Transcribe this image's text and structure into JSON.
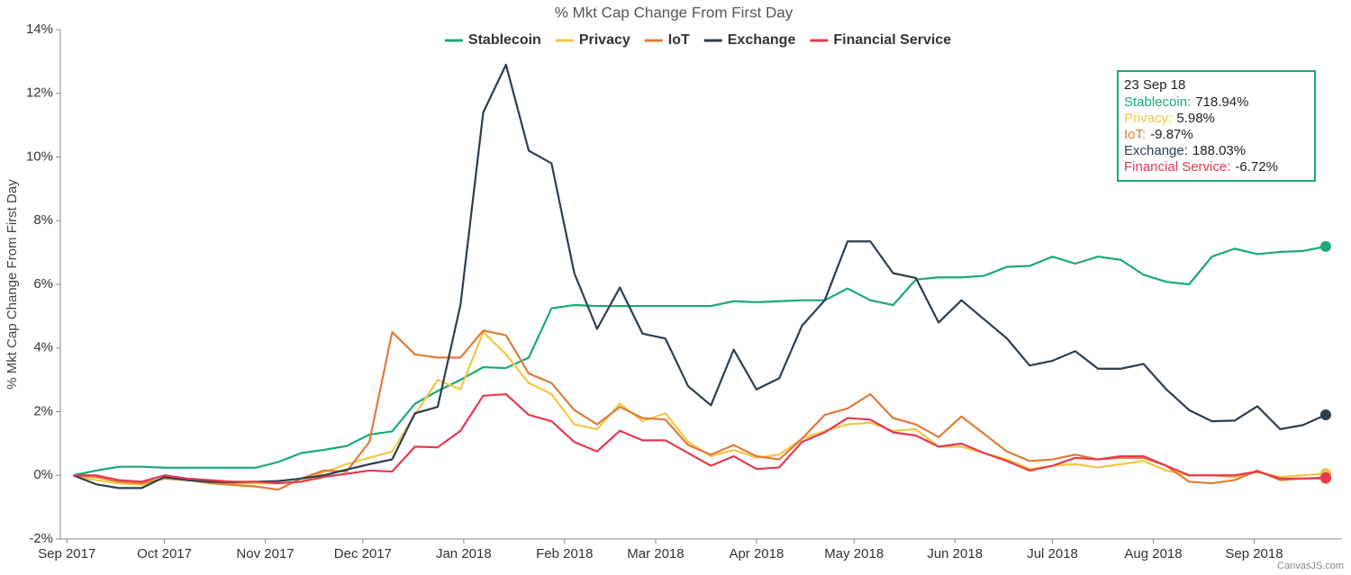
{
  "chart_data": {
    "type": "line",
    "title": "% Mkt Cap Change From First Day",
    "y_label": "% Mkt Cap Change From First Day",
    "credit": "CanvasJS.com",
    "grid": false,
    "x": [
      "2017-09-03",
      "2017-09-10",
      "2017-09-17",
      "2017-09-24",
      "2017-10-01",
      "2017-10-08",
      "2017-10-15",
      "2017-10-22",
      "2017-10-29",
      "2017-11-05",
      "2017-11-12",
      "2017-11-19",
      "2017-11-26",
      "2017-12-03",
      "2017-12-10",
      "2017-12-17",
      "2017-12-24",
      "2017-12-31",
      "2018-01-07",
      "2018-01-14",
      "2018-01-21",
      "2018-01-28",
      "2018-02-04",
      "2018-02-11",
      "2018-02-18",
      "2018-02-25",
      "2018-03-04",
      "2018-03-11",
      "2018-03-18",
      "2018-03-25",
      "2018-04-01",
      "2018-04-08",
      "2018-04-15",
      "2018-04-22",
      "2018-04-29",
      "2018-05-06",
      "2018-05-13",
      "2018-05-20",
      "2018-05-27",
      "2018-06-03",
      "2018-06-10",
      "2018-06-17",
      "2018-06-24",
      "2018-07-01",
      "2018-07-08",
      "2018-07-15",
      "2018-07-22",
      "2018-07-29",
      "2018-08-05",
      "2018-08-12",
      "2018-08-19",
      "2018-08-26",
      "2018-09-02",
      "2018-09-09",
      "2018-09-16",
      "2018-09-23"
    ],
    "xlim": [
      "2017-08-30",
      "2018-09-28"
    ],
    "xticks": [
      {
        "value": "2017-09-01",
        "label": "Sep 2017"
      },
      {
        "value": "2017-10-01",
        "label": "Oct 2017"
      },
      {
        "value": "2017-11-01",
        "label": "Nov 2017"
      },
      {
        "value": "2017-12-01",
        "label": "Dec 2017"
      },
      {
        "value": "2018-01-01",
        "label": "Jan 2018"
      },
      {
        "value": "2018-02-01",
        "label": "Feb 2018"
      },
      {
        "value": "2018-03-01",
        "label": "Mar 2018"
      },
      {
        "value": "2018-04-01",
        "label": "Apr 2018"
      },
      {
        "value": "2018-05-01",
        "label": "May 2018"
      },
      {
        "value": "2018-06-01",
        "label": "Jun 2018"
      },
      {
        "value": "2018-07-01",
        "label": "Jul 2018"
      },
      {
        "value": "2018-08-01",
        "label": "Aug 2018"
      },
      {
        "value": "2018-09-01",
        "label": "Sep 2018"
      }
    ],
    "ylim": [
      -2,
      14
    ],
    "yticks": [
      {
        "value": -2,
        "label": "-2%"
      },
      {
        "value": 0,
        "label": "0%"
      },
      {
        "value": 2,
        "label": "2%"
      },
      {
        "value": 4,
        "label": "4%"
      },
      {
        "value": 6,
        "label": "6%"
      },
      {
        "value": 8,
        "label": "8%"
      },
      {
        "value": 10,
        "label": "10%"
      },
      {
        "value": 12,
        "label": "12%"
      },
      {
        "value": 14,
        "label": "14%"
      }
    ],
    "series": [
      {
        "name": "Stablecoin",
        "color": "#1aaa75",
        "values": [
          0,
          0.15,
          0.27,
          0.27,
          0.24,
          0.24,
          0.24,
          0.24,
          0.24,
          0.42,
          0.7,
          0.8,
          0.92,
          1.28,
          1.38,
          2.25,
          2.65,
          3.0,
          3.4,
          3.37,
          3.7,
          5.25,
          5.35,
          5.32,
          5.32,
          5.32,
          5.32,
          5.32,
          5.32,
          5.47,
          5.44,
          5.47,
          5.5,
          5.5,
          5.87,
          5.5,
          5.35,
          6.15,
          6.22,
          6.22,
          6.27,
          6.55,
          6.58,
          6.87,
          6.65,
          6.87,
          6.77,
          6.3,
          6.08,
          6.0,
          6.87,
          7.12,
          6.95,
          7.02,
          7.05,
          7.19
        ]
      },
      {
        "name": "Privacy",
        "color": "#f2c744",
        "values": [
          0,
          -0.15,
          -0.25,
          -0.3,
          -0.1,
          -0.15,
          -0.2,
          -0.25,
          -0.25,
          -0.25,
          -0.2,
          0.1,
          0.35,
          0.55,
          0.75,
          1.9,
          3.0,
          2.7,
          4.5,
          3.8,
          2.9,
          2.55,
          1.6,
          1.45,
          2.25,
          1.7,
          1.95,
          1.05,
          0.6,
          0.8,
          0.55,
          0.65,
          1.15,
          1.4,
          1.6,
          1.65,
          1.4,
          1.45,
          0.9,
          0.9,
          0.7,
          0.5,
          0.2,
          0.3,
          0.35,
          0.25,
          0.35,
          0.45,
          0.15,
          0,
          0,
          -0.05,
          0.1,
          -0.05,
          0,
          0.06
        ]
      },
      {
        "name": "IoT",
        "color": "#e07b39",
        "values": [
          0,
          -0.05,
          -0.2,
          -0.25,
          -0.1,
          -0.15,
          -0.25,
          -0.3,
          -0.35,
          -0.45,
          -0.1,
          0.15,
          0.12,
          1.05,
          4.5,
          3.8,
          3.7,
          3.7,
          4.55,
          4.4,
          3.2,
          2.9,
          2.05,
          1.6,
          2.15,
          1.8,
          1.75,
          0.95,
          0.65,
          0.95,
          0.6,
          0.5,
          1.15,
          1.9,
          2.1,
          2.55,
          1.8,
          1.6,
          1.2,
          1.85,
          1.3,
          0.75,
          0.45,
          0.5,
          0.65,
          0.5,
          0.55,
          0.55,
          0.3,
          -0.2,
          -0.25,
          -0.15,
          0.15,
          -0.15,
          -0.1,
          -0.1
        ]
      },
      {
        "name": "Exchange",
        "color": "#2c3e50",
        "values": [
          0,
          -0.28,
          -0.4,
          -0.4,
          -0.05,
          -0.15,
          -0.2,
          -0.22,
          -0.2,
          -0.18,
          -0.1,
          0,
          0.18,
          0.35,
          0.5,
          1.95,
          2.15,
          5.35,
          11.4,
          12.9,
          10.2,
          9.8,
          6.35,
          4.6,
          5.9,
          4.45,
          4.3,
          2.8,
          2.2,
          3.95,
          2.7,
          3.05,
          4.7,
          5.5,
          7.35,
          7.35,
          6.35,
          6.2,
          4.8,
          5.5,
          4.9,
          4.3,
          3.45,
          3.6,
          3.9,
          3.35,
          3.35,
          3.5,
          2.7,
          2.05,
          1.7,
          1.72,
          2.17,
          1.45,
          1.58,
          1.9
        ]
      },
      {
        "name": "Financial Service",
        "color": "#e8384f",
        "values": [
          0,
          0,
          -0.15,
          -0.2,
          0,
          -0.1,
          -0.15,
          -0.2,
          -0.2,
          -0.25,
          -0.2,
          -0.05,
          0.05,
          0.15,
          0.12,
          0.9,
          0.88,
          1.4,
          2.5,
          2.55,
          1.9,
          1.7,
          1.05,
          0.75,
          1.4,
          1.1,
          1.1,
          0.7,
          0.3,
          0.6,
          0.2,
          0.25,
          1.05,
          1.35,
          1.8,
          1.75,
          1.35,
          1.25,
          0.9,
          1.0,
          0.7,
          0.45,
          0.15,
          0.3,
          0.55,
          0.5,
          0.6,
          0.6,
          0.3,
          0,
          0,
          0,
          0.12,
          -0.1,
          -0.1,
          -0.07
        ]
      }
    ],
    "tooltip": {
      "title": "23 Sep 18",
      "entries": [
        {
          "label": "Stablecoin:",
          "value": "718.94%"
        },
        {
          "label": "Privacy:",
          "value": "5.98%"
        },
        {
          "label": "IoT:",
          "value": "-9.87%"
        },
        {
          "label": "Exchange:",
          "value": "188.03%"
        },
        {
          "label": "Financial Service:",
          "value": "-6.72%"
        }
      ]
    }
  }
}
